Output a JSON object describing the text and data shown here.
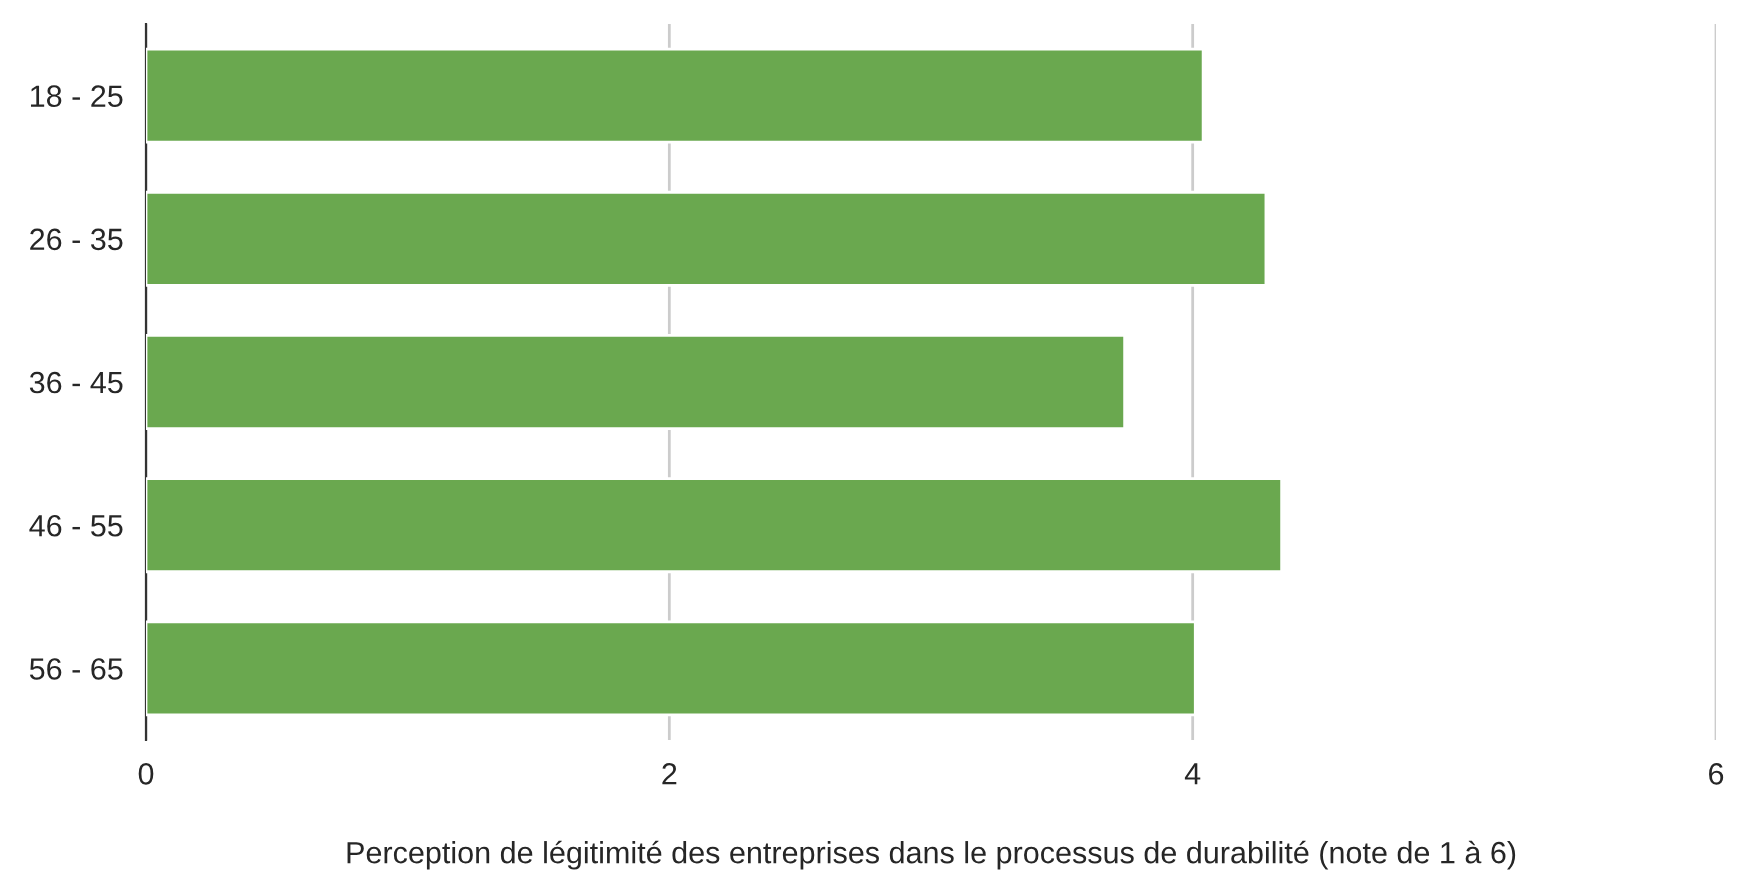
{
  "chart_data": {
    "type": "bar",
    "orientation": "horizontal",
    "categories": [
      "18 - 25",
      "26 - 35",
      "36 - 45",
      "46 - 55",
      "56 - 65"
    ],
    "values": [
      4.04,
      4.28,
      3.74,
      4.34,
      4.01
    ],
    "color": "#6aa84f",
    "xlabel": "Perception de légitimité des entreprises dans le processus de durabilité (note de 1 à 6)",
    "xlim": [
      0,
      6
    ],
    "xticks": [
      0,
      2,
      4,
      6
    ],
    "grid": "x",
    "legend": false
  }
}
